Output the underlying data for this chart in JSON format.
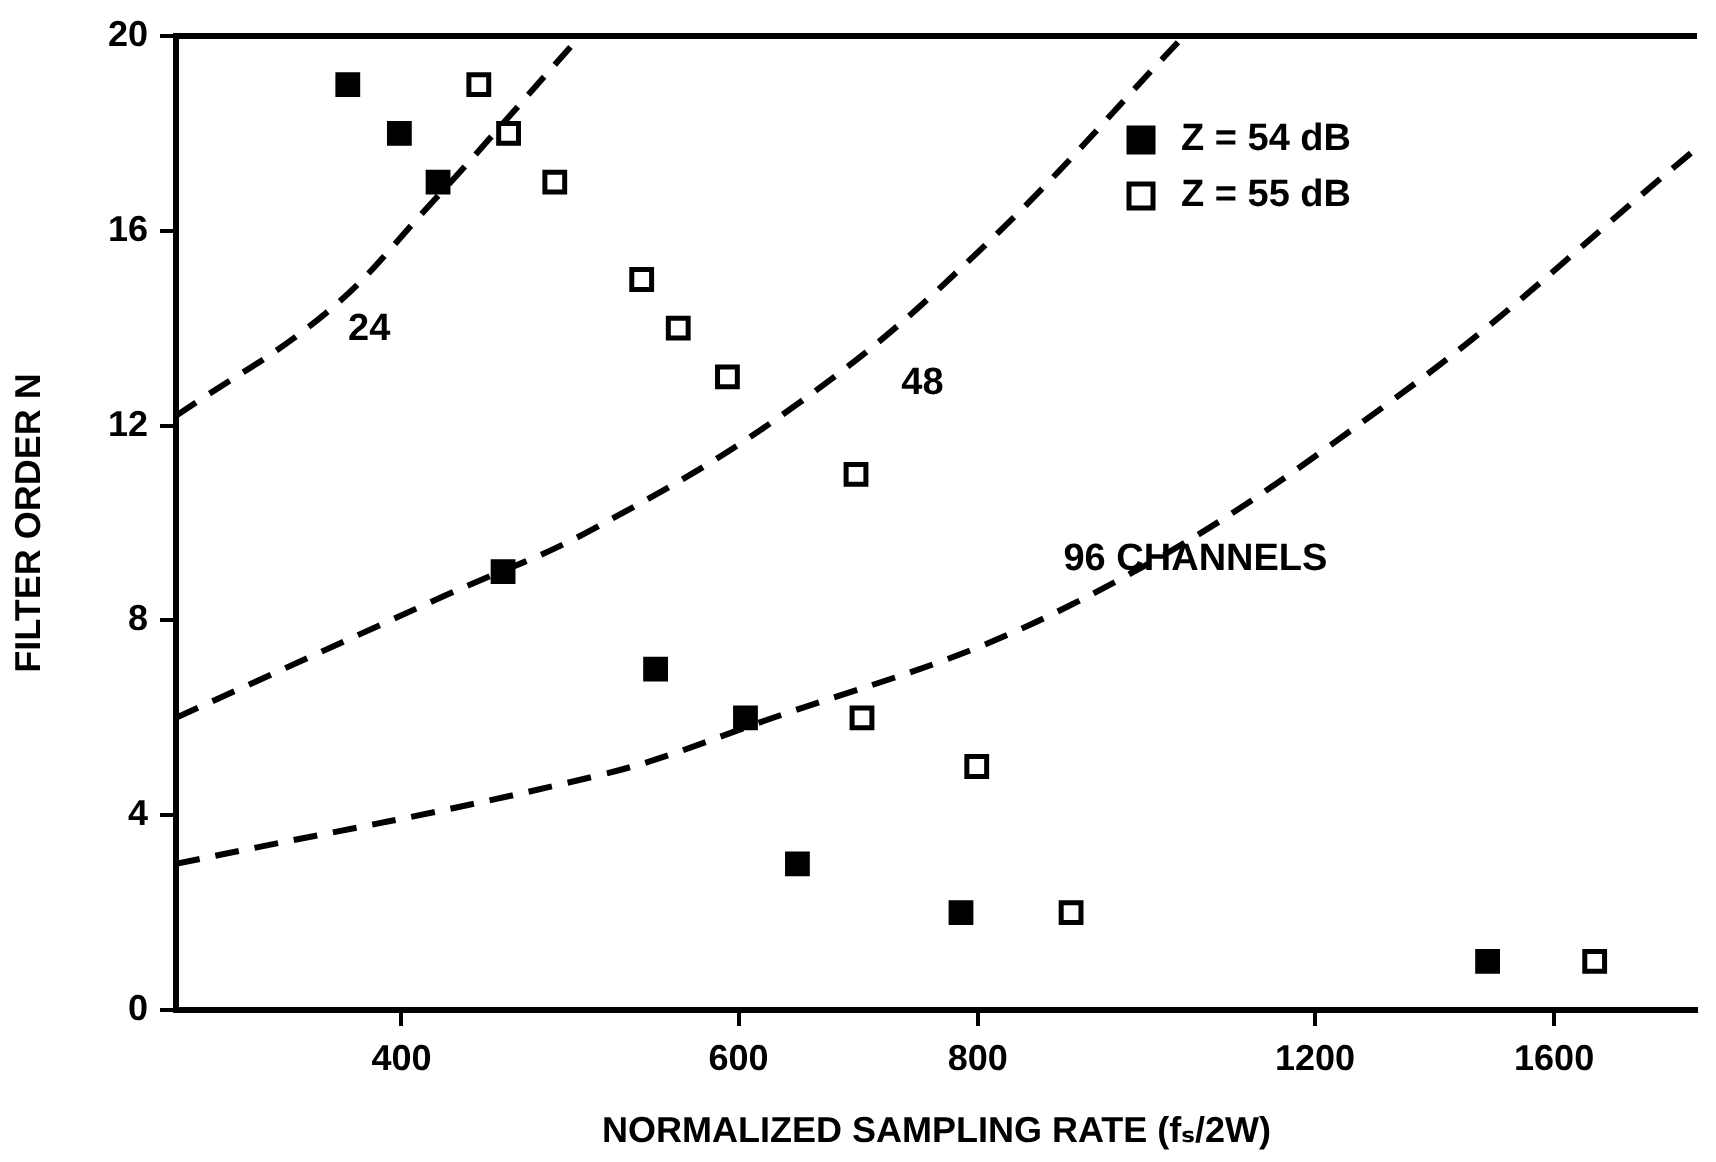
{
  "chart_data": {
    "type": "scatter",
    "xlabel": "NORMALIZED SAMPLING RATE (fₛ/2W)",
    "ylabel": "FILTER ORDER N",
    "log": "x",
    "xlim": [
      305,
      1900
    ],
    "xticks": [
      400,
      600,
      800,
      1200,
      1600
    ],
    "ylim": [
      0,
      20
    ],
    "yticks": [
      0,
      4,
      8,
      12,
      16,
      20
    ],
    "grid": false,
    "legend": "top right",
    "marker": "square",
    "series": [
      {
        "name": "Z = 54 dB",
        "color": "#000000",
        "x": [
          375,
          399,
          418,
          452,
          543,
          605,
          644,
          784,
          1477
        ],
        "values": [
          19,
          18,
          17,
          9,
          7,
          6,
          3,
          2,
          1
        ]
      },
      {
        "name": "Z = 55 dB",
        "color": "#ffffff",
        "x": [
          439,
          455,
          481,
          534,
          558,
          592,
          691,
          696,
          799,
          895,
          1680
        ],
        "values": [
          19,
          18,
          17,
          15,
          14,
          13,
          11,
          6,
          5,
          2,
          1
        ]
      },
      {
        "name": "24",
        "type": "line",
        "line_style": "dashed",
        "marker": "none",
        "color": "#000000",
        "x": [
          305,
          365,
          411,
          496
        ],
        "values": [
          12.2,
          14.3,
          16.4,
          20
        ]
      },
      {
        "name": "48",
        "type": "line",
        "line_style": "dashed",
        "marker": "none",
        "color": "#000000",
        "x": [
          305,
          421,
          505,
          647,
          807,
          1025
        ],
        "values": [
          6.0,
          8.5,
          9.9,
          12.5,
          15.7,
          20
        ]
      },
      {
        "name": "96 CHANNELS",
        "type": "line",
        "line_style": "dashed",
        "marker": "none",
        "color": "#000000",
        "x": [
          305,
          505,
          605,
          893,
          1315,
          1900
        ],
        "values": [
          3.0,
          4.8,
          5.8,
          8.3,
          12.5,
          17.7
        ]
      }
    ]
  }
}
